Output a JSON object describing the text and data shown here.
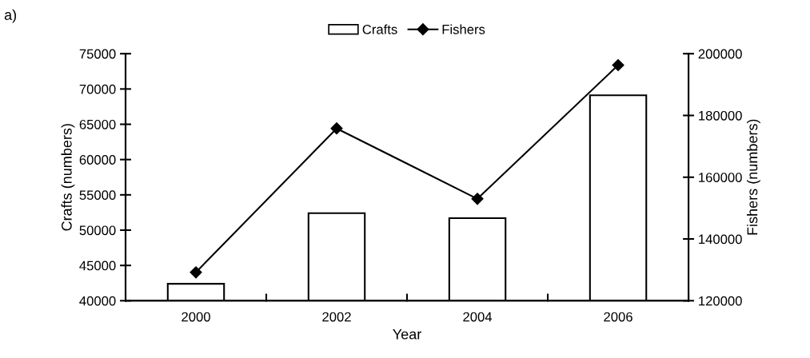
{
  "chart_data": {
    "type": "bar",
    "categories": [
      "2000",
      "2002",
      "2004",
      "2006"
    ],
    "xlabel": "Year",
    "ylabel": "Crafts (numbers)",
    "y2label": "Fishers (numbers)",
    "ylim": [
      40000,
      75000
    ],
    "yticks": [
      40000,
      45000,
      50000,
      55000,
      60000,
      65000,
      70000,
      75000
    ],
    "y2lim": [
      120000,
      200000
    ],
    "y2ticks": [
      120000,
      140000,
      160000,
      180000,
      200000
    ],
    "series": [
      {
        "name": "Crafts",
        "color": "#ffffff",
        "values": [
          42400,
          52400,
          51700,
          69100
        ]
      },
      {
        "name": "Fishers",
        "type": "line",
        "axis": "y2",
        "color": "#000000",
        "marker": "diamond",
        "values": [
          129200,
          175800,
          153000,
          196300
        ]
      }
    ],
    "legend": "top",
    "grid": false,
    "annotations": [
      "a)"
    ]
  }
}
